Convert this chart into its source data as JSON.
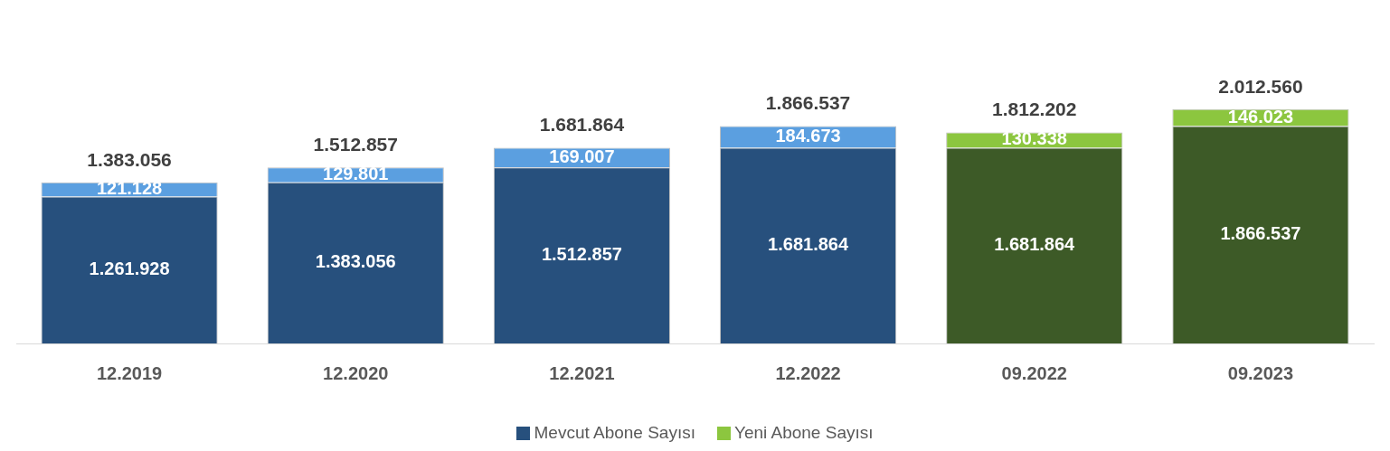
{
  "chart_data": {
    "type": "bar",
    "stacked": true,
    "categories": [
      "12.2019",
      "12.2020",
      "12.2021",
      "12.2022",
      "09.2022",
      "09.2023"
    ],
    "series": [
      {
        "name": "Mevcut Abone Sayısı",
        "color": "#27507d",
        "colors": [
          "#27507d",
          "#27507d",
          "#27507d",
          "#27507d",
          "#3d5a27",
          "#3d5a27"
        ],
        "values": [
          1261928,
          1383056,
          1512857,
          1681864,
          1681864,
          1866537
        ],
        "value_labels": [
          "1.261.928",
          "1.383.056",
          "1.512.857",
          "1.681.864",
          "1.681.864",
          "1.866.537"
        ]
      },
      {
        "name": "Yeni Abone Sayısı",
        "color": "#8cc63f",
        "colors": [
          "#5b9fe0",
          "#5b9fe0",
          "#5b9fe0",
          "#5b9fe0",
          "#8cc63f",
          "#8cc63f"
        ],
        "values": [
          121128,
          129801,
          169007,
          184673,
          130338,
          146023
        ],
        "value_labels": [
          "121.128",
          "129.801",
          "169.007",
          "184.673",
          "130.338",
          "146.023"
        ]
      }
    ],
    "totals": [
      "1.383.056",
      "1.512.857",
      "1.681.864",
      "1.866.537",
      "1.812.202",
      "2.012.560"
    ],
    "legend": "bottom",
    "grid": false
  }
}
